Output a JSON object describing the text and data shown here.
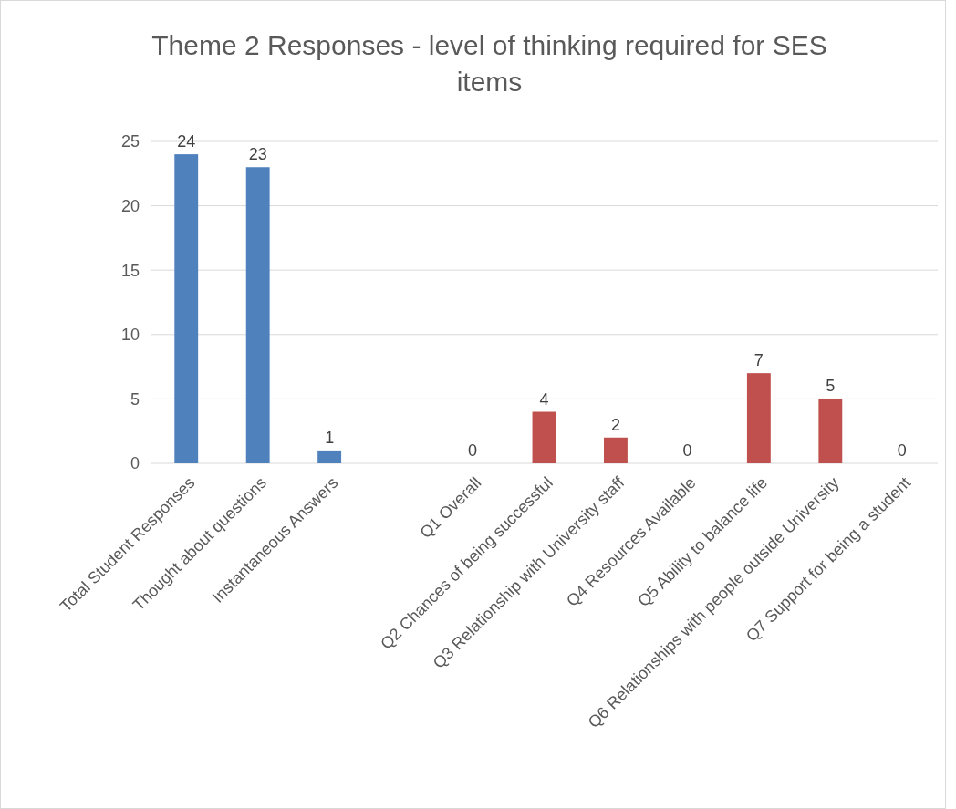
{
  "chart_data": {
    "type": "bar",
    "title": "Theme 2 Responses - level of thinking required for SES items",
    "categories": [
      "Total Student Responses",
      "Thought about questions",
      "Instantaneous Answers",
      null,
      "Q1 Overall",
      "Q2 Chances of being successful",
      "Q3 Relationship with University staff",
      "Q4 Resources Available",
      "Q5 Ability to balance life",
      "Q6 Relationships with people outside University",
      "Q7 Support for being a student"
    ],
    "values": [
      24,
      23,
      1,
      null,
      0,
      4,
      2,
      0,
      7,
      5,
      0
    ],
    "colors": [
      "#4f81bd",
      "#4f81bd",
      "#4f81bd",
      null,
      "#c0504d",
      "#c0504d",
      "#c0504d",
      "#c0504d",
      "#c0504d",
      "#c0504d",
      "#c0504d"
    ],
    "ylim": [
      0,
      25
    ],
    "yticks": [
      0,
      5,
      10,
      15,
      20,
      25
    ],
    "grid": "y",
    "data_labels": true
  }
}
